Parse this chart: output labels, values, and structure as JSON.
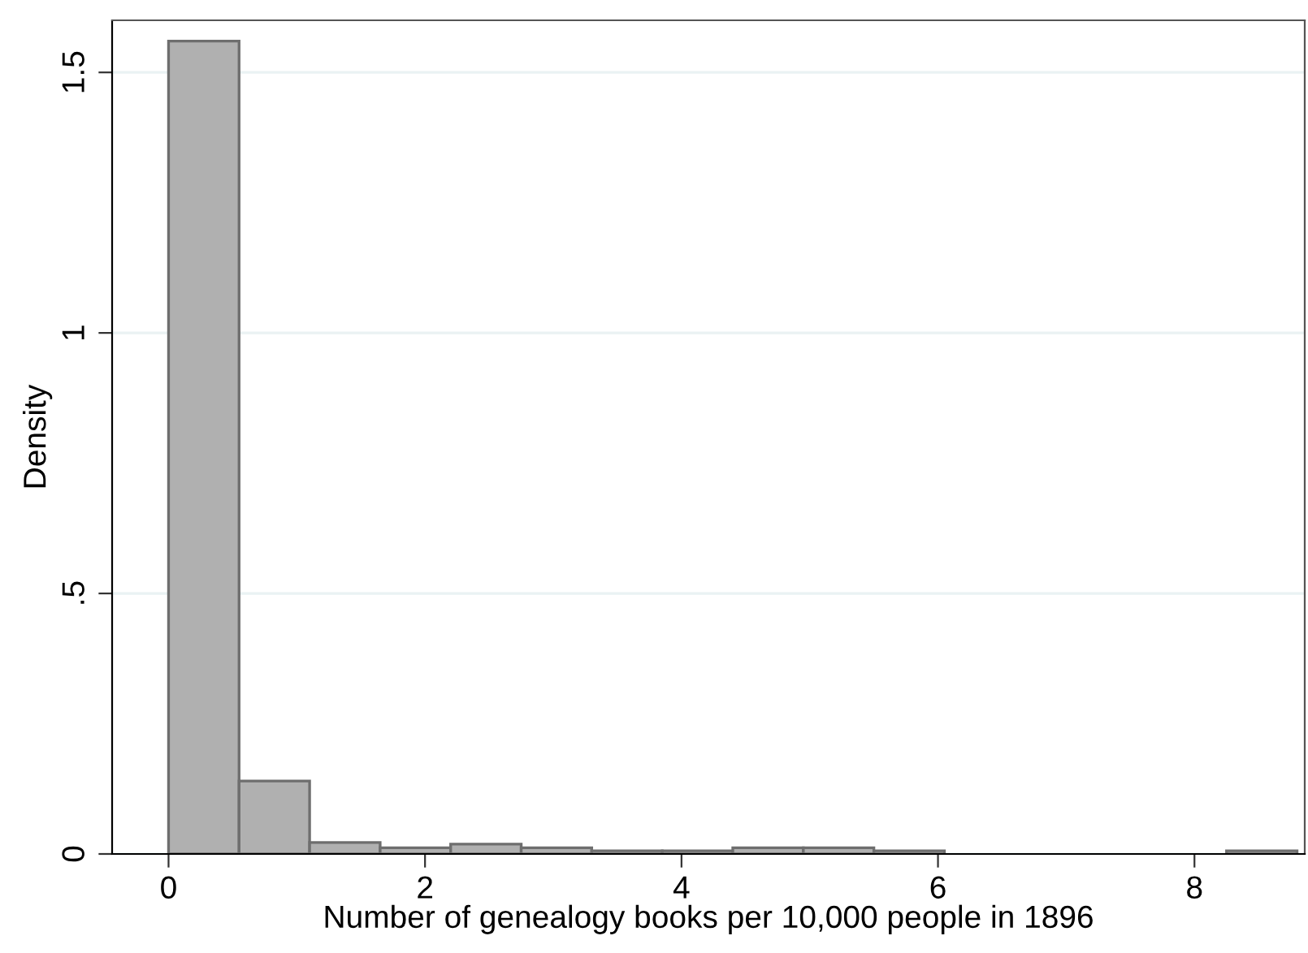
{
  "chart_data": {
    "type": "histogram",
    "xlabel": "Number of genealogy books per 10,000 people in 1896",
    "ylabel": "Density",
    "bins": [
      0,
      0.55,
      1.1,
      1.65,
      2.2,
      2.75,
      3.3,
      3.85,
      4.4,
      4.95,
      5.5,
      6.05,
      6.6,
      7.15,
      7.7,
      8.25,
      8.8
    ],
    "values": [
      1.56,
      0.14,
      0.022,
      0.012,
      0.019,
      0.012,
      0.006,
      0.006,
      0.012,
      0.012,
      0.006,
      null,
      null,
      null,
      null,
      0.006
    ],
    "color": "#b0b0b0",
    "xlim": [
      -0.44,
      8.86
    ],
    "ylim": [
      0,
      1.6
    ],
    "xticks": [
      0,
      2,
      4,
      6,
      8
    ],
    "yticks": [
      0,
      {
        "value": 0.5,
        "label": ".5"
      },
      1,
      {
        "value": 1.5,
        "label": "1.5"
      }
    ],
    "grid": "y"
  }
}
